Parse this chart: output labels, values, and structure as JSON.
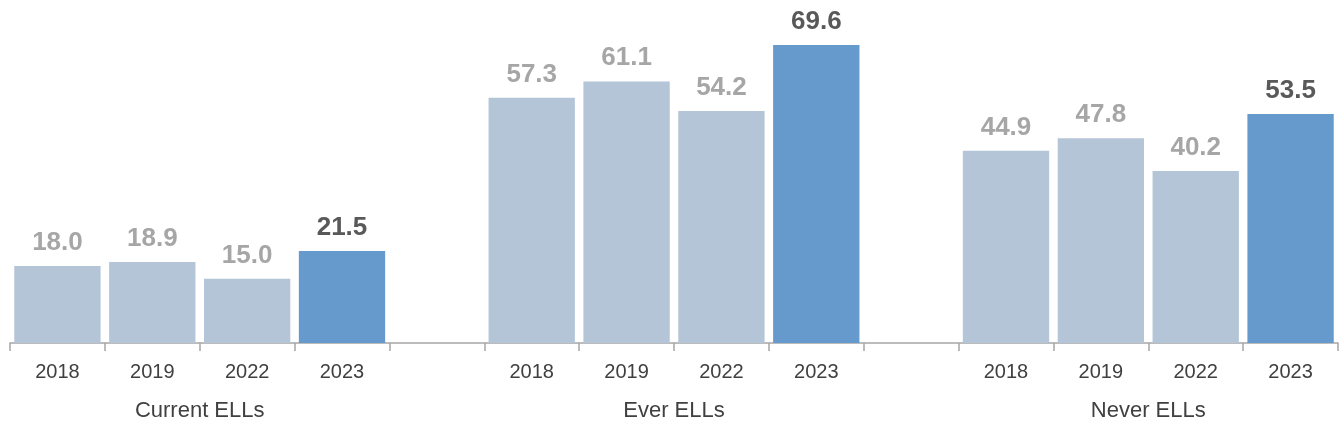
{
  "chart_data": {
    "type": "bar",
    "categories": [
      "2018",
      "2019",
      "2022",
      "2023",
      null,
      "2018",
      "2019",
      "2022",
      "2023",
      null,
      "2018",
      "2019",
      "2022",
      "2023"
    ],
    "values": [
      18.0,
      18.9,
      15.0,
      21.5,
      null,
      57.3,
      61.1,
      54.2,
      69.6,
      null,
      44.9,
      47.8,
      40.2,
      53.5
    ],
    "colors": [
      "#b4c5d8",
      "#b4c5d8",
      "#b4c5d8",
      "#6699cc",
      null,
      "#b4c5d8",
      "#b4c5d8",
      "#b4c5d8",
      "#6699cc",
      null,
      "#b4c5d8",
      "#b4c5d8",
      "#b4c5d8",
      "#6699cc"
    ],
    "value_labels": [
      "18.0",
      "18.9",
      "15.0",
      "21.5",
      null,
      "57.3",
      "61.1",
      "54.2",
      "69.6",
      null,
      "44.9",
      "47.8",
      "40.2",
      "53.5"
    ],
    "annotations": [
      "Current ELLs",
      "Ever ELLs",
      "Never ELLs"
    ],
    "tick_labels": "x"
  }
}
